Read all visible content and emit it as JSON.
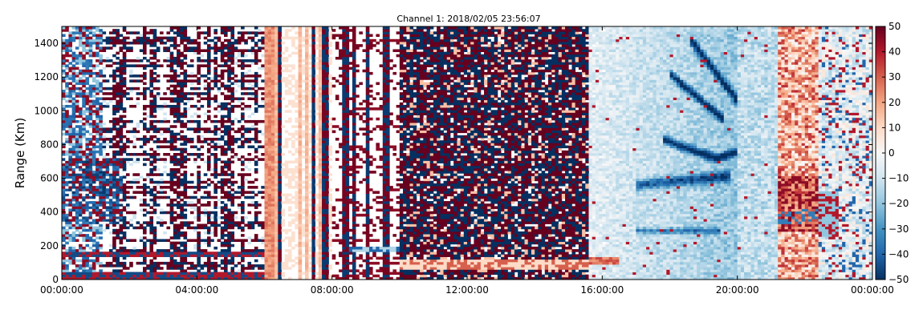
{
  "chart_data": {
    "type": "heatmap",
    "title": "Channel 1: 2018/02/05 23:56:07",
    "ylabel": "Range (Km)",
    "xlabel": "",
    "x_ticks": [
      "00:00:00",
      "04:00:00",
      "08:00:00",
      "12:00:00",
      "16:00:00",
      "20:00:00",
      "00:00:00"
    ],
    "x_tick_hours": [
      0,
      4,
      8,
      12,
      16,
      20,
      24
    ],
    "xlim_hours": [
      0,
      24
    ],
    "y_ticks": [
      0,
      200,
      400,
      600,
      800,
      1000,
      1200,
      1400
    ],
    "ylim": [
      0,
      1500
    ],
    "colorbar": {
      "ticks": [
        50,
        40,
        30,
        20,
        10,
        0,
        -10,
        -20,
        -30,
        -40,
        -50
      ],
      "tick_labels": [
        "50",
        "40",
        "30",
        "20",
        "10",
        "0",
        "−10",
        "−20",
        "−30",
        "−40",
        "−50"
      ],
      "range": [
        -50,
        50
      ],
      "colormap": "RdBu_r",
      "colors": [
        "#053061",
        "#2166ac",
        "#4393c3",
        "#92c5de",
        "#d1e5f0",
        "#f7f7f7",
        "#fddbc7",
        "#f4a582",
        "#d6604d",
        "#b2182b",
        "#67001f"
      ]
    },
    "grid": false,
    "description_regions": [
      {
        "hours": [
          0,
          6
        ],
        "pattern": "noisy dark red / blue with white gaps"
      },
      {
        "hours": [
          6,
          10
        ],
        "pattern": "vertical stripes, light salmon and white with dark red/navy lines"
      },
      {
        "hours": [
          10,
          15.5
        ],
        "pattern": "dense dark red / navy speckle"
      },
      {
        "hours": [
          15.5,
          21
        ],
        "pattern": "light blue with dark blue streaks"
      },
      {
        "hours": [
          21,
          24
        ],
        "pattern": "red band at ~21.5h then white/blue"
      }
    ]
  }
}
